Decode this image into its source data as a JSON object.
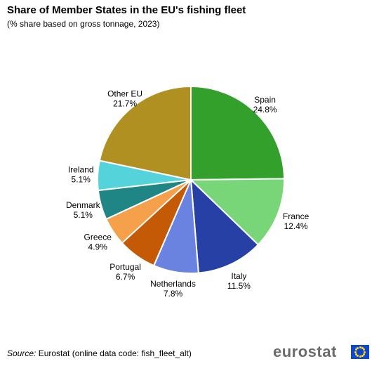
{
  "title": "Share of Member States in the EU's fishing fleet",
  "subtitle": "(% share based on gross tonnage, 2023)",
  "source_label": "Source:",
  "source_text": "Eurostat (online data code: fish_fleet_alt)",
  "logo_text": "eurostat",
  "chart_data": {
    "type": "pie",
    "categories": [
      "Spain",
      "France",
      "Italy",
      "Netherlands",
      "Portugal",
      "Greece",
      "Denmark",
      "Ireland",
      "Other EU"
    ],
    "values": [
      24.8,
      12.4,
      11.5,
      7.8,
      6.7,
      4.9,
      5.1,
      5.1,
      21.7
    ],
    "value_labels": [
      "24.8%",
      "12.4%",
      "11.5%",
      "7.8%",
      "6.7%",
      "4.9%",
      "5.1%",
      "5.1%",
      "21.7%"
    ],
    "colors": [
      "#33a02c",
      "#78d679",
      "#2740a6",
      "#6b83e0",
      "#c45a06",
      "#f5a04a",
      "#1f8585",
      "#55d3da",
      "#b09020"
    ],
    "start": "top, clockwise",
    "legend": "none"
  }
}
